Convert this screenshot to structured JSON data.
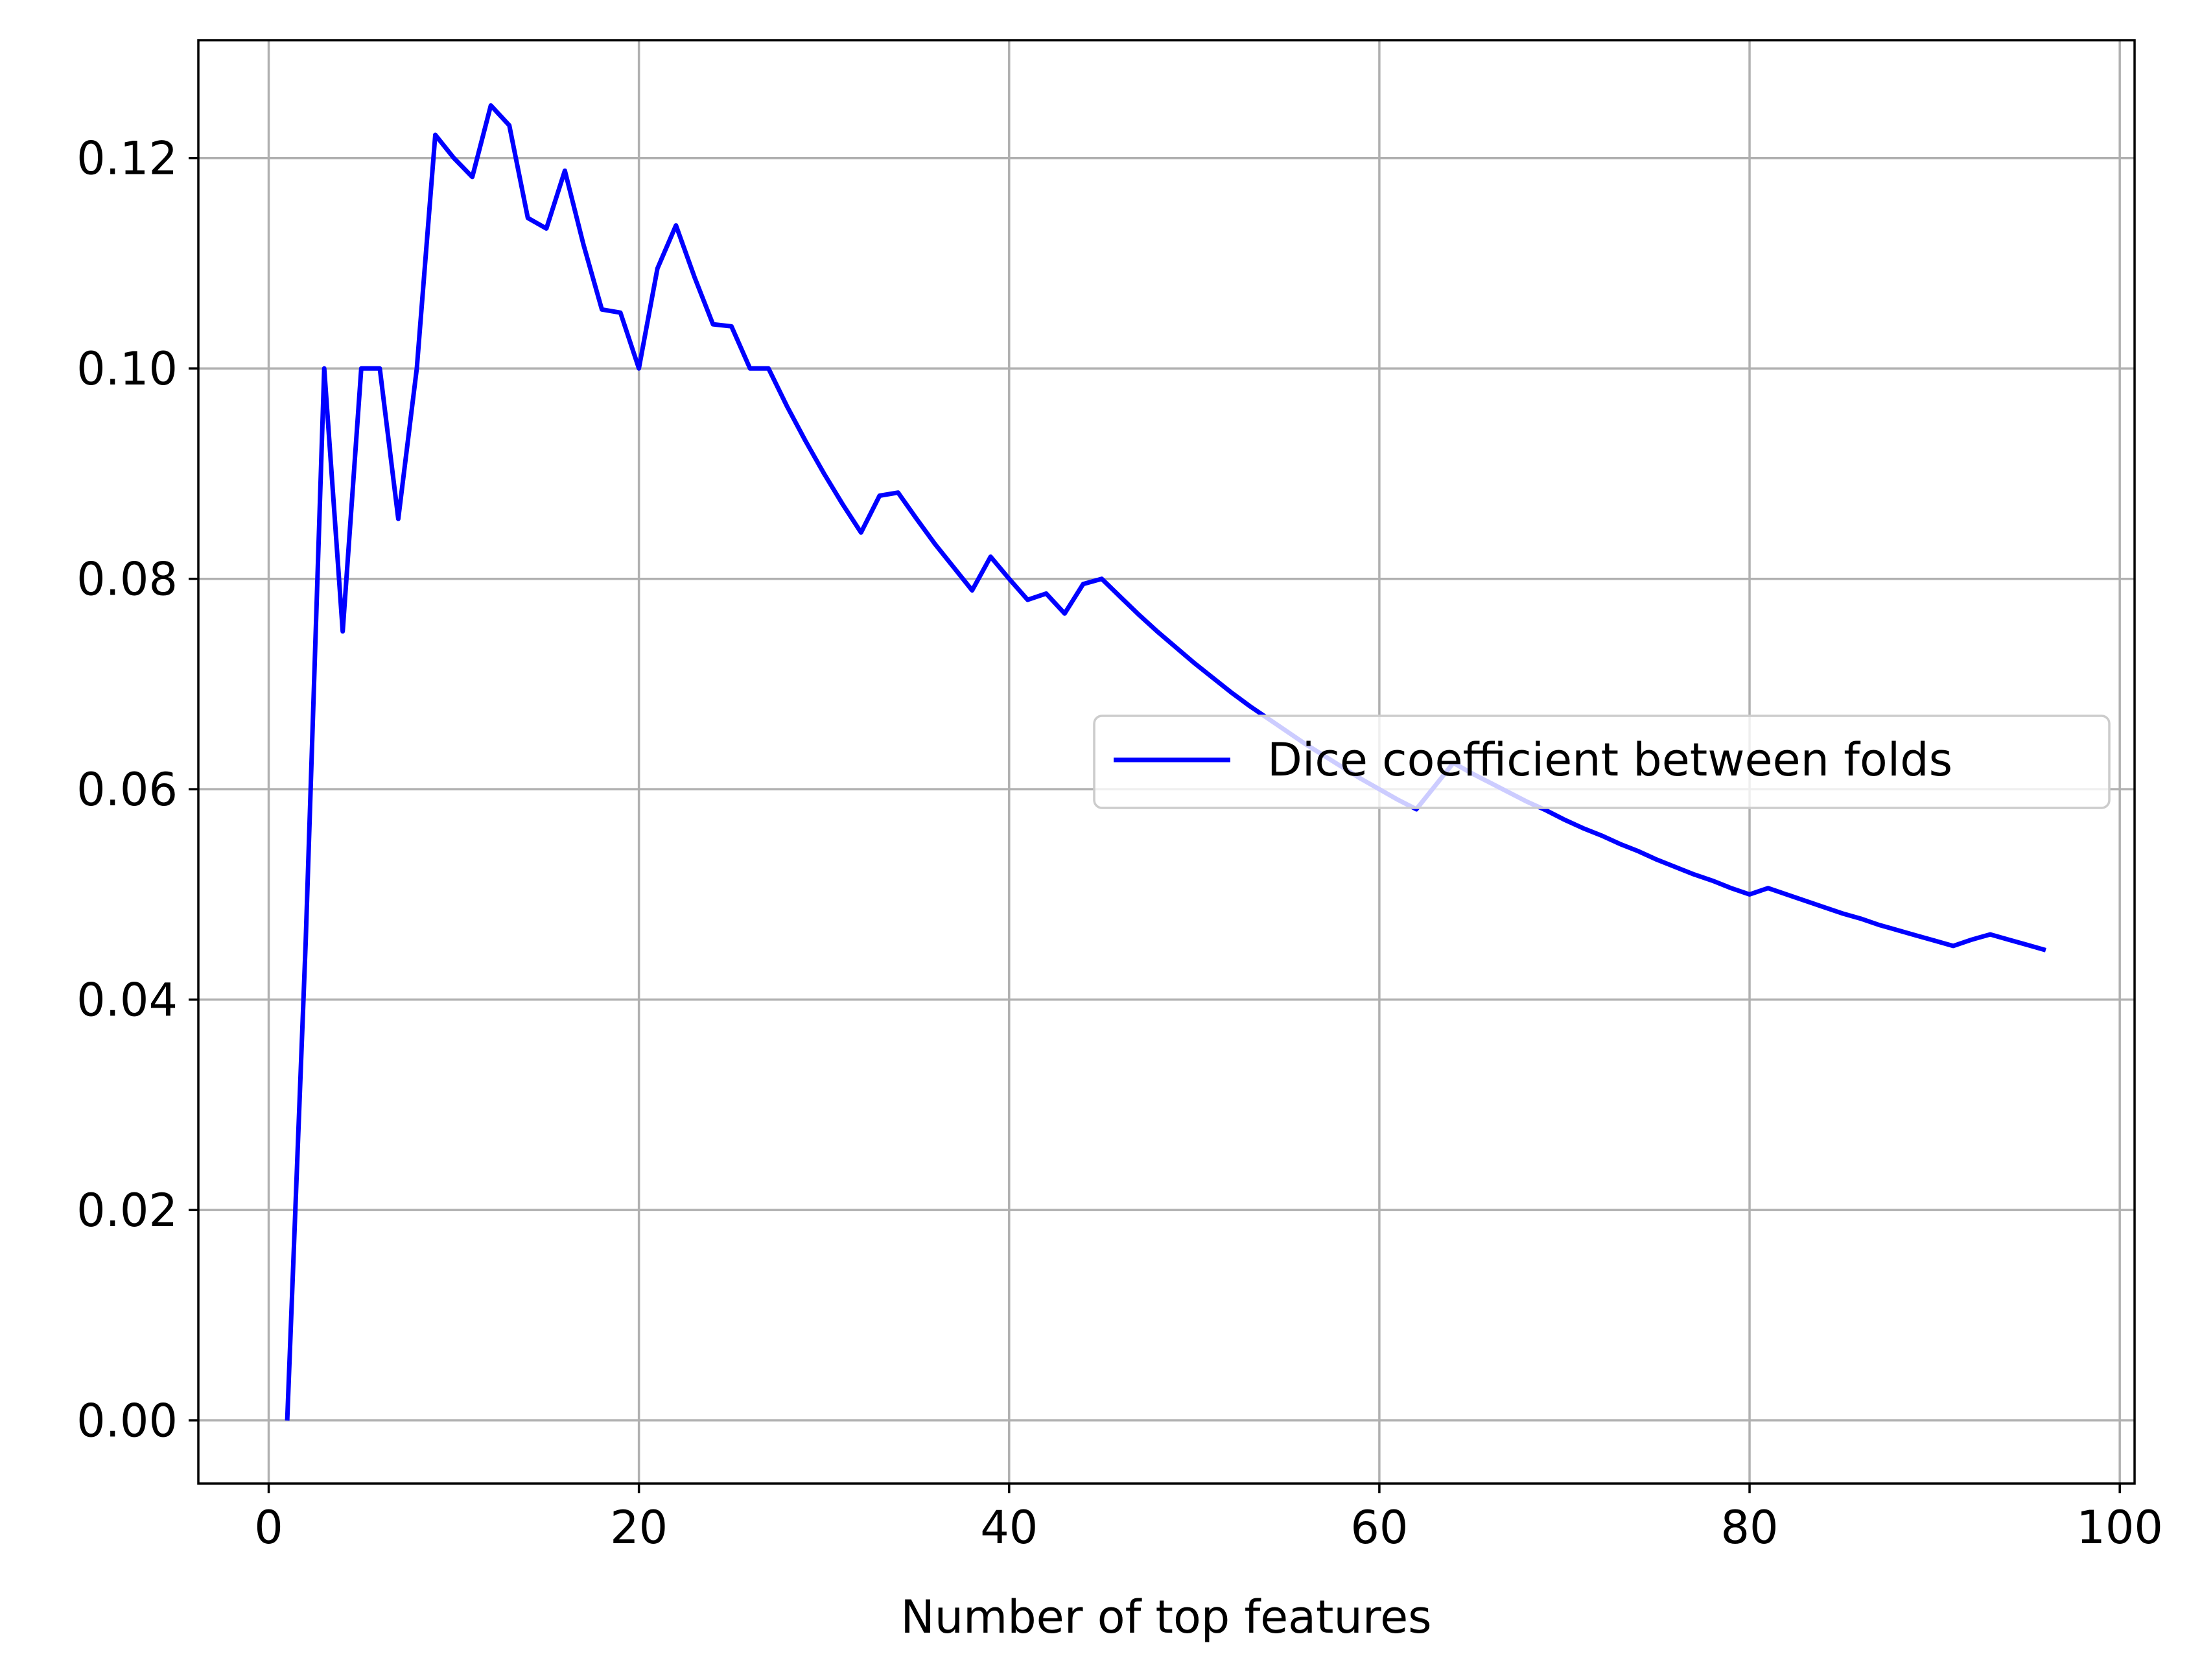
{
  "chart_data": {
    "type": "line",
    "title": "",
    "xlabel": "Number of top features",
    "ylabel": "",
    "xlim": [
      -3.8,
      100.8
    ],
    "ylim": [
      -0.006,
      0.1312
    ],
    "xticks": [
      0,
      20,
      40,
      60,
      80,
      100
    ],
    "xtick_labels": [
      "0",
      "20",
      "40",
      "60",
      "80",
      "100"
    ],
    "yticks": [
      0.0,
      0.02,
      0.04,
      0.06,
      0.08,
      0.1,
      0.12
    ],
    "ytick_labels": [
      "0.00",
      "0.02",
      "0.04",
      "0.06",
      "0.08",
      "0.10",
      "0.12"
    ],
    "grid": true,
    "legend_position": "center-right",
    "series": [
      {
        "name": "Dice coefficient between folds",
        "color": "#0000ff",
        "x": [
          1,
          2,
          3,
          4,
          5,
          6,
          7,
          8,
          9,
          10,
          11,
          12,
          13,
          14,
          15,
          16,
          17,
          18,
          19,
          20,
          21,
          22,
          23,
          24,
          25,
          26,
          27,
          28,
          29,
          30,
          31,
          32,
          33,
          34,
          35,
          36,
          37,
          38,
          39,
          40,
          41,
          42,
          43,
          44,
          45,
          46,
          47,
          48,
          49,
          50,
          51,
          52,
          53,
          54,
          55,
          56,
          57,
          58,
          59,
          60,
          61,
          62,
          63,
          64,
          65,
          66,
          67,
          68,
          69,
          70,
          71,
          72,
          73,
          74,
          75,
          76,
          77,
          78,
          79,
          80,
          81,
          82,
          83,
          84,
          85,
          86,
          87,
          88,
          89,
          90,
          91,
          92,
          93,
          94,
          95,
          96
        ],
        "y": [
          0.0,
          0.0455,
          0.1,
          0.075,
          0.1,
          0.1,
          0.0857,
          0.1,
          0.1222,
          0.12,
          0.1182,
          0.125,
          0.1231,
          0.1143,
          0.1133,
          0.1188,
          0.1118,
          0.1056,
          0.1053,
          0.1,
          0.1095,
          0.1136,
          0.1087,
          0.1042,
          0.104,
          0.1,
          0.1,
          0.0964,
          0.0931,
          0.09,
          0.0871,
          0.0844,
          0.0879,
          0.0882,
          0.0857,
          0.0833,
          0.0811,
          0.0789,
          0.0821,
          0.08,
          0.078,
          0.0786,
          0.0767,
          0.0795,
          0.08,
          0.0783,
          0.0766,
          0.075,
          0.0735,
          0.072,
          0.0706,
          0.0692,
          0.0679,
          0.0667,
          0.0655,
          0.0643,
          0.0632,
          0.0621,
          0.061,
          0.06,
          0.059,
          0.0581,
          0.0603,
          0.0625,
          0.0615,
          0.0606,
          0.0597,
          0.0588,
          0.058,
          0.0571,
          0.0563,
          0.0556,
          0.0548,
          0.0541,
          0.0533,
          0.0526,
          0.0519,
          0.0513,
          0.0506,
          0.05,
          0.0506,
          0.05,
          0.0494,
          0.0488,
          0.0482,
          0.0477,
          0.0471,
          0.0466,
          0.0461,
          0.0456,
          0.0451,
          0.0457,
          0.0462,
          0.0457,
          0.0452,
          0.0447
        ]
      }
    ]
  }
}
